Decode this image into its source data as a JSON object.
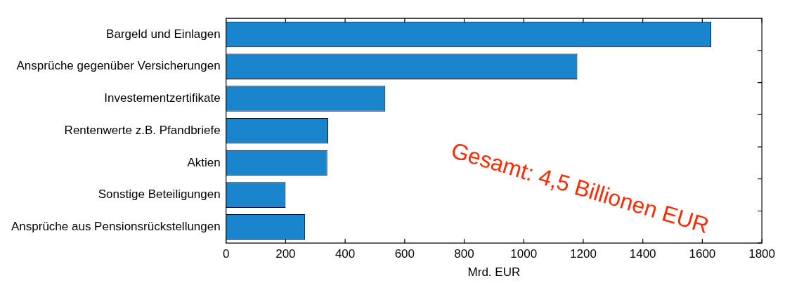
{
  "chart_data": {
    "type": "bar",
    "orientation": "horizontal",
    "xlabel": "Mrd. EUR",
    "categories": [
      "Bargeld und Einlagen",
      "Ansprüche gegenüber Versicherungen",
      "Investementzertifikate",
      "Rentenwerte z.B. Pfandbriefe",
      "Aktien",
      "Sonstige Beteiligungen",
      "Ansprüche aus Pensionsrückstellungen"
    ],
    "values": [
      1630,
      1180,
      535,
      343,
      340,
      200,
      265
    ],
    "color": "#1a85cc",
    "xlim": [
      0,
      1800
    ],
    "xticks": [
      0,
      200,
      400,
      600,
      800,
      1000,
      1200,
      1400,
      1600,
      1800
    ],
    "grid": false,
    "legend": false,
    "annotations": [
      "Gesamt: 4,5 Billionen EUR"
    ]
  }
}
